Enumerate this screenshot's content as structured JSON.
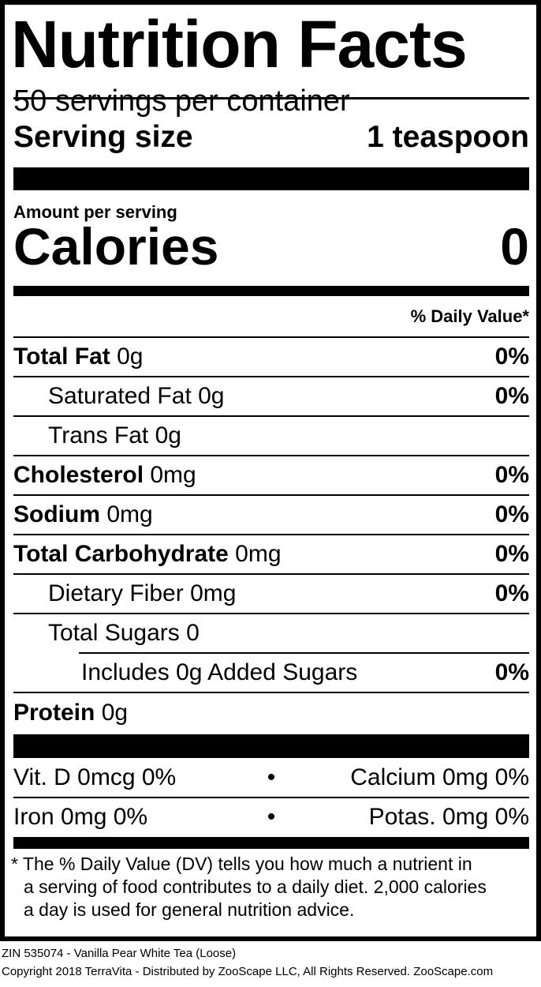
{
  "title": "Nutrition Facts",
  "servings_per_container": "50 servings per container",
  "serving_size_label": "Serving size",
  "serving_size_value": "1 teaspoon",
  "amount_per_serving": "Amount per serving",
  "calories_label": "Calories",
  "calories_value": "0",
  "daily_value_header": "% Daily Value*",
  "nutrients": [
    {
      "name": "Total Fat",
      "amount": "0g",
      "dv": "0%"
    },
    {
      "name": "Saturated Fat",
      "amount": "0g",
      "dv": "0%"
    },
    {
      "name": "Trans Fat",
      "amount": "0g",
      "dv": ""
    },
    {
      "name": "Cholesterol",
      "amount": "0mg",
      "dv": "0%"
    },
    {
      "name": "Sodium",
      "amount": "0mg",
      "dv": "0%"
    },
    {
      "name": "Total Carbohydrate",
      "amount": "0mg",
      "dv": "0%"
    },
    {
      "name": "Dietary Fiber",
      "amount": "0mg",
      "dv": "0%"
    },
    {
      "name": "Total Sugars",
      "amount": "0",
      "dv": ""
    },
    {
      "name": "Includes 0g Added Sugars",
      "amount": "",
      "dv": "0%"
    },
    {
      "name": "Protein",
      "amount": "0g",
      "dv": ""
    }
  ],
  "vitamins": [
    {
      "left": "Vit. D 0mcg 0%",
      "sep": "•",
      "right": "Calcium 0mg 0%"
    },
    {
      "left": "Iron 0mg 0%",
      "sep": "•",
      "right": "Potas. 0mg 0%"
    }
  ],
  "footnote": [
    "* The % Daily Value (DV) tells you how much a nutrient in",
    "a serving of food contributes to a daily diet. 2,000 calories",
    "a day is used for general nutrition advice."
  ],
  "product_line": "ZIN 535074 - Vanilla Pear White Tea (Loose)",
  "copyright": "Copyright 2018 TerraVita - Distributed by ZooScape LLC, All Rights Reserved. ZooScape.com"
}
